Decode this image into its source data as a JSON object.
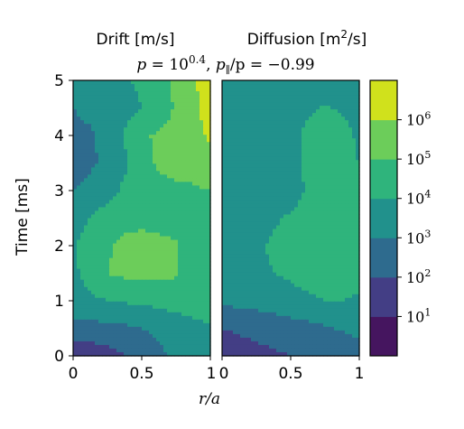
{
  "chart_data": {
    "type": "heatmap",
    "subtitle": "p = 10^0.4, p∥/p = −0.99",
    "subtitle_parts": {
      "p": "p",
      "eq": " = ",
      "base": "10",
      "exp": "0.4",
      "sep": ", ",
      "ppar": "p",
      "par_sub": "∥",
      "rest": "/p = −0.99"
    },
    "xlabel": "r/a",
    "ylabel": "Time [ms]",
    "xlim": [
      0,
      1
    ],
    "ylim": [
      0,
      5
    ],
    "x_ticks": [
      "0",
      "0.5",
      "1"
    ],
    "y_ticks": [
      "0",
      "1",
      "2",
      "3",
      "4",
      "5"
    ],
    "colorbar": {
      "scale": "log",
      "levels_exp": [
        0,
        1,
        2,
        3,
        4,
        5,
        6,
        7
      ],
      "tick_base": "10",
      "tick_exps": [
        "1",
        "2",
        "3",
        "4",
        "5",
        "6"
      ],
      "colors": [
        "#45155f",
        "#433e85",
        "#2e6b8e",
        "#21918c",
        "#2fb47c",
        "#6ccd5a",
        "#d0e11c"
      ]
    },
    "panels": [
      {
        "title_main": "Drift [m/s]",
        "title_parts": {
          "pre": "Drift [m/s]"
        },
        "description": "log10 value field",
        "field": [
          [
            1.0,
            1.3,
            1.6,
            2.0,
            2.4,
            2.8,
            3.2,
            3.4,
            3.6
          ],
          [
            2.8,
            2.7,
            2.7,
            2.8,
            3.0,
            3.2,
            3.5,
            3.7,
            3.9
          ],
          [
            3.6,
            3.8,
            4.0,
            4.1,
            4.2,
            4.3,
            4.4,
            4.5,
            4.6
          ],
          [
            3.8,
            4.4,
            5.0,
            5.2,
            5.3,
            5.3,
            5.1,
            4.6,
            4.4
          ],
          [
            3.9,
            4.4,
            4.9,
            5.2,
            5.3,
            5.2,
            5.1,
            4.6,
            4.5
          ],
          [
            3.7,
            4.0,
            4.5,
            4.7,
            4.8,
            4.7,
            4.6,
            4.4,
            4.6
          ],
          [
            3.0,
            3.2,
            3.6,
            4.2,
            4.6,
            4.8,
            4.9,
            4.9,
            5.0
          ],
          [
            2.7,
            2.9,
            3.1,
            3.8,
            4.8,
            5.1,
            5.2,
            5.3,
            5.7
          ],
          [
            2.8,
            2.9,
            3.3,
            4.1,
            4.9,
            5.1,
            5.3,
            5.6,
            6.2
          ],
          [
            3.0,
            3.2,
            3.4,
            3.6,
            4.0,
            4.5,
            5.1,
            5.8,
            6.4
          ],
          [
            3.4,
            3.5,
            3.8,
            3.9,
            4.2,
            4.6,
            5.2,
            5.9,
            6.4
          ]
        ]
      },
      {
        "title_main": "Diffusion [m²/s]",
        "title_parts": {
          "pre": "Diffusion [m",
          "sup": "2",
          "post": "/s]"
        },
        "description": "log10 value field",
        "field": [
          [
            1.6,
            1.7,
            1.8,
            1.9,
            2.0,
            2.1,
            2.2,
            2.3,
            2.5
          ],
          [
            2.0,
            2.1,
            2.2,
            2.3,
            2.5,
            2.7,
            2.9,
            3.1,
            3.3
          ],
          [
            3.2,
            3.3,
            3.4,
            3.6,
            3.8,
            3.9,
            4.0,
            4.0,
            3.9
          ],
          [
            3.4,
            3.6,
            3.8,
            4.0,
            4.1,
            4.2,
            4.3,
            4.4,
            4.2
          ],
          [
            3.3,
            3.6,
            3.9,
            4.1,
            4.2,
            4.3,
            4.4,
            4.5,
            4.2
          ],
          [
            3.2,
            3.4,
            3.7,
            3.9,
            4.1,
            4.2,
            4.6,
            4.7,
            4.1
          ],
          [
            3.2,
            3.3,
            3.4,
            3.5,
            3.7,
            4.1,
            4.9,
            5.0,
            4.0
          ],
          [
            3.1,
            3.2,
            3.4,
            3.4,
            3.5,
            4.2,
            5.0,
            5.0,
            3.9
          ],
          [
            3.0,
            3.2,
            3.3,
            3.4,
            3.6,
            4.3,
            4.9,
            4.6,
            3.7
          ],
          [
            3.0,
            3.1,
            3.2,
            3.3,
            3.5,
            3.8,
            4.1,
            3.8,
            3.5
          ],
          [
            3.0,
            3.1,
            3.1,
            3.2,
            3.3,
            3.3,
            3.4,
            3.3,
            3.2
          ]
        ]
      }
    ]
  }
}
